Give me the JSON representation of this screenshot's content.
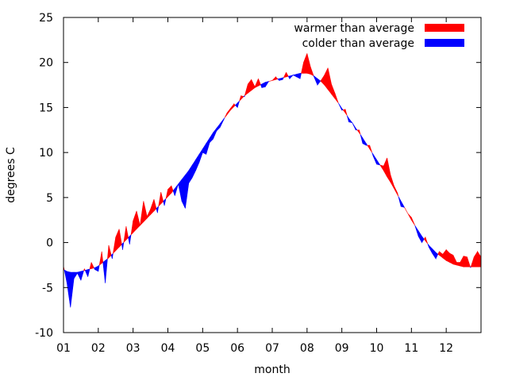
{
  "chart_data": {
    "type": "area",
    "title": "",
    "xlabel": "month",
    "ylabel": "degrees C",
    "xlim": [
      1,
      13
    ],
    "ylim": [
      -10,
      25
    ],
    "x_ticks": [
      {
        "value": 1,
        "label": "01"
      },
      {
        "value": 2,
        "label": "02"
      },
      {
        "value": 3,
        "label": "03"
      },
      {
        "value": 4,
        "label": "04"
      },
      {
        "value": 5,
        "label": "05"
      },
      {
        "value": 6,
        "label": "06"
      },
      {
        "value": 7,
        "label": "07"
      },
      {
        "value": 8,
        "label": "08"
      },
      {
        "value": 9,
        "label": "09"
      },
      {
        "value": 10,
        "label": "10"
      },
      {
        "value": 11,
        "label": "11"
      },
      {
        "value": 12,
        "label": "12"
      }
    ],
    "y_ticks": [
      {
        "value": -10,
        "label": "-10"
      },
      {
        "value": -5,
        "label": "-5"
      },
      {
        "value": 0,
        "label": "0"
      },
      {
        "value": 5,
        "label": "5"
      },
      {
        "value": 10,
        "label": "10"
      },
      {
        "value": 15,
        "label": "15"
      },
      {
        "value": 20,
        "label": "20"
      },
      {
        "value": 25,
        "label": "25"
      }
    ],
    "grid": false,
    "legend_position": "top-right",
    "legend": [
      {
        "label": "warmer than average",
        "color": "#ff0000"
      },
      {
        "label": "colder than average",
        "color": "#0000ff"
      }
    ],
    "x": [
      1.0,
      1.1,
      1.2,
      1.3,
      1.4,
      1.5,
      1.6,
      1.7,
      1.8,
      1.9,
      2.0,
      2.1,
      2.2,
      2.3,
      2.4,
      2.5,
      2.6,
      2.7,
      2.8,
      2.9,
      3.0,
      3.1,
      3.2,
      3.3,
      3.4,
      3.5,
      3.6,
      3.7,
      3.8,
      3.9,
      4.0,
      4.1,
      4.2,
      4.3,
      4.4,
      4.5,
      4.6,
      4.7,
      4.8,
      4.9,
      5.0,
      5.1,
      5.2,
      5.3,
      5.4,
      5.5,
      5.6,
      5.7,
      5.8,
      5.9,
      6.0,
      6.1,
      6.2,
      6.3,
      6.4,
      6.5,
      6.6,
      6.7,
      6.8,
      6.9,
      7.0,
      7.1,
      7.2,
      7.3,
      7.4,
      7.5,
      7.6,
      7.7,
      7.8,
      7.9,
      8.0,
      8.1,
      8.2,
      8.3,
      8.4,
      8.5,
      8.6,
      8.7,
      8.8,
      8.9,
      9.0,
      9.1,
      9.2,
      9.3,
      9.4,
      9.5,
      9.6,
      9.7,
      9.8,
      9.9,
      10.0,
      10.1,
      10.2,
      10.3,
      10.4,
      10.5,
      10.6,
      10.7,
      10.8,
      10.9,
      11.0,
      11.1,
      11.2,
      11.3,
      11.4,
      11.5,
      11.6,
      11.7,
      11.8,
      11.9,
      12.0,
      12.1,
      12.2,
      12.3,
      12.4,
      12.5,
      12.6,
      12.7,
      12.8,
      12.9,
      13.0
    ],
    "series": [
      {
        "name": "",
        "role": "average",
        "values": [
          -3.0,
          -3.2,
          -3.3,
          -3.3,
          -3.3,
          -3.2,
          -3.1,
          -3.0,
          -2.9,
          -2.8,
          -2.6,
          -2.3,
          -2.0,
          -1.7,
          -1.3,
          -0.9,
          -0.5,
          -0.1,
          0.3,
          0.7,
          1.1,
          1.5,
          1.9,
          2.3,
          2.7,
          3.1,
          3.5,
          3.9,
          4.3,
          4.7,
          5.1,
          5.5,
          6.0,
          6.5,
          7.0,
          7.5,
          8.0,
          8.6,
          9.2,
          9.8,
          10.4,
          11.0,
          11.6,
          12.2,
          12.7,
          13.2,
          13.7,
          14.2,
          14.7,
          15.1,
          15.5,
          15.9,
          16.3,
          16.6,
          16.9,
          17.2,
          17.4,
          17.6,
          17.8,
          17.9,
          18.0,
          18.1,
          18.2,
          18.3,
          18.4,
          18.5,
          18.6,
          18.7,
          18.8,
          18.8,
          18.8,
          18.7,
          18.5,
          18.2,
          17.9,
          17.5,
          17.0,
          16.5,
          16.0,
          15.5,
          14.9,
          14.4,
          13.8,
          13.3,
          12.7,
          12.2,
          11.6,
          11.0,
          10.4,
          9.8,
          9.2,
          8.6,
          8.0,
          7.3,
          6.7,
          6.0,
          5.3,
          4.6,
          3.9,
          3.2,
          2.5,
          1.9,
          1.3,
          0.7,
          0.2,
          -0.3,
          -0.7,
          -1.1,
          -1.4,
          -1.7,
          -2.0,
          -2.2,
          -2.4,
          -2.5,
          -2.6,
          -2.7,
          -2.7,
          -2.7,
          -2.7,
          -2.7,
          -2.7
        ]
      },
      {
        "name": "",
        "role": "observed",
        "values": [
          -2.6,
          -4.5,
          -7.2,
          -4.0,
          -3.4,
          -4.2,
          -2.9,
          -3.8,
          -2.2,
          -3.0,
          -3.2,
          -1.0,
          -4.5,
          -0.3,
          -1.8,
          0.6,
          1.5,
          -0.8,
          1.8,
          -0.2,
          2.4,
          3.5,
          1.9,
          4.6,
          2.9,
          3.7,
          4.8,
          3.3,
          5.6,
          4.1,
          5.9,
          6.3,
          5.2,
          6.5,
          4.6,
          3.8,
          6.6,
          7.2,
          8.0,
          8.9,
          10.0,
          9.8,
          11.1,
          11.5,
          12.4,
          12.8,
          13.6,
          14.4,
          14.9,
          15.4,
          15.0,
          16.3,
          16.2,
          17.6,
          18.1,
          17.3,
          18.2,
          17.2,
          17.3,
          17.9,
          18.0,
          18.4,
          18.0,
          18.1,
          18.9,
          18.2,
          18.6,
          18.4,
          18.2,
          20.0,
          21.0,
          19.5,
          18.4,
          17.5,
          18.0,
          18.6,
          19.4,
          17.6,
          16.6,
          15.5,
          14.7,
          14.8,
          13.4,
          13.3,
          12.5,
          12.5,
          11.0,
          10.8,
          10.8,
          9.6,
          8.7,
          8.6,
          8.5,
          9.4,
          7.5,
          6.3,
          5.5,
          4.0,
          3.9,
          3.2,
          2.8,
          1.9,
          0.7,
          0.0,
          0.6,
          -0.5,
          -1.2,
          -1.8,
          -1.0,
          -1.3,
          -0.8,
          -1.2,
          -1.4,
          -2.2,
          -2.2,
          -1.5,
          -1.6,
          -2.8,
          -1.6,
          -1.0,
          -1.6
        ]
      }
    ]
  }
}
